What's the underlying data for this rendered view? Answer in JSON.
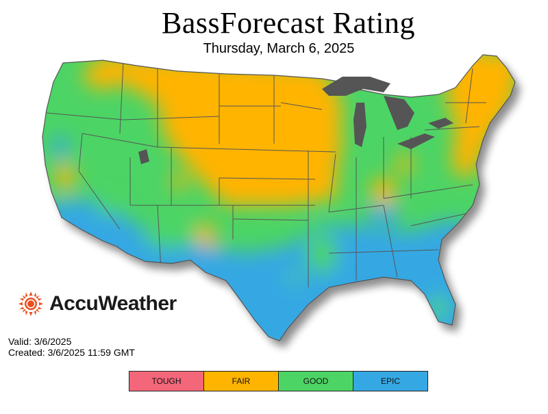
{
  "title": "BassForecast Rating",
  "subtitle": "Thursday, March 6, 2025",
  "brand": {
    "name": "AccuWeather",
    "logo_icon": "sun-logo-icon",
    "logo_color": "#e8501f"
  },
  "info": {
    "valid": "Valid: 3/6/2025",
    "created": "Created: 3/6/2025 11:59 GMT"
  },
  "legend": [
    {
      "label": "TOUGH",
      "color": "#f4677a"
    },
    {
      "label": "FAIR",
      "color": "#ffb400"
    },
    {
      "label": "GOOD",
      "color": "#4cd465"
    },
    {
      "label": "EPIC",
      "color": "#35a8e3"
    }
  ],
  "colors": {
    "great_lakes": "#555555",
    "borders": "#555555"
  }
}
